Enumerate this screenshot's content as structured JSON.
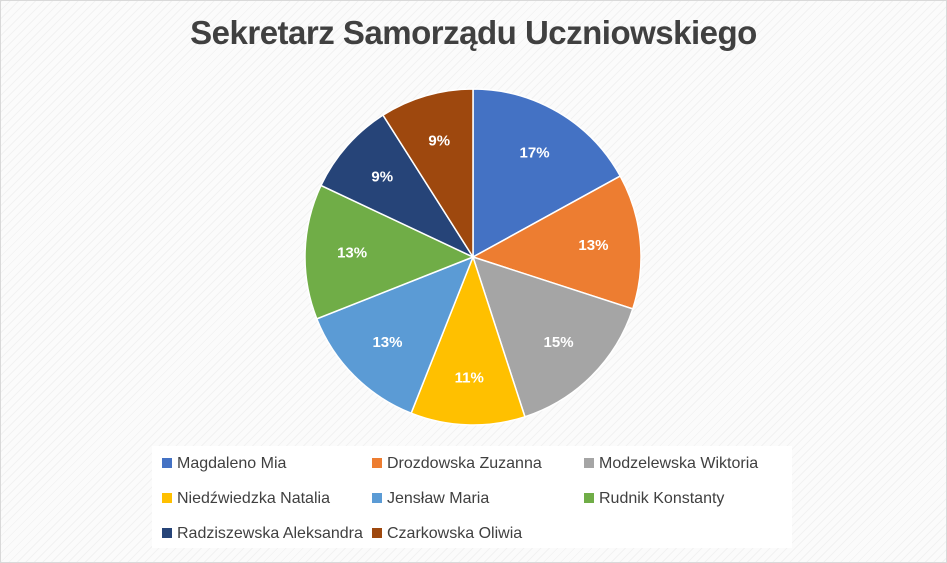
{
  "chart_data": {
    "type": "pie",
    "title": "Sekretarz Samorządu Uczniowskiego",
    "legend_position": "bottom",
    "slices": [
      {
        "name": "Magdaleno Mia",
        "value": 17,
        "label": "17%",
        "color": "#4472C4"
      },
      {
        "name": "Drozdowska Zuzanna",
        "value": 13,
        "label": "13%",
        "color": "#ED7D31"
      },
      {
        "name": "Modzelewska Wiktoria",
        "value": 15,
        "label": "15%",
        "color": "#A5A5A5"
      },
      {
        "name": "Niedźwiedzka Natalia",
        "value": 11,
        "label": "11%",
        "color": "#FFC000"
      },
      {
        "name": "Jensław Maria",
        "value": 13,
        "label": "13%",
        "color": "#5B9BD5"
      },
      {
        "name": "Rudnik Konstanty",
        "value": 13,
        "label": "13%",
        "color": "#70AD47"
      },
      {
        "name": "Radziszewska Aleksandra",
        "value": 9,
        "label": "9%",
        "color": "#264478"
      },
      {
        "name": "Czarkowska Oliwia",
        "value": 9,
        "label": "9%",
        "color": "#9E480E"
      }
    ]
  }
}
